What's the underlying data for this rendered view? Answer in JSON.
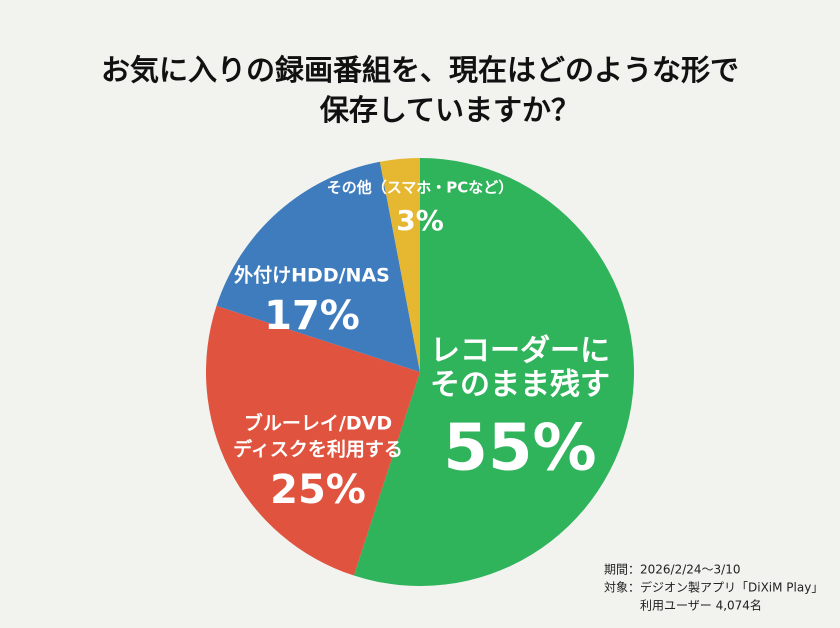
{
  "chart_data": {
    "type": "pie",
    "title": [
      "お気に入りの録画番組を、現在はどのような形で",
      "保存していますか？"
    ],
    "categories": [
      [
        "レコーダーに",
        "そのまま残す"
      ],
      [
        "ブルーレイ/DVD",
        "ディスクを利用する"
      ],
      [
        "外付けHDD/NAS"
      ],
      [
        "その他（スマホ・PCなど）"
      ]
    ],
    "values": [
      55,
      25,
      17,
      3
    ],
    "value_labels": [
      "55%",
      "25%",
      "17%",
      "3%"
    ],
    "colors": [
      "#2fb35b",
      "#e0533f",
      "#3e7cbd",
      "#e6b730"
    ],
    "notes": [
      "期間：2026/2/24～3/10",
      "対象：デジオン製アプリ「DiXiM Play」",
      "利用ユーザー 4,074名"
    ]
  }
}
